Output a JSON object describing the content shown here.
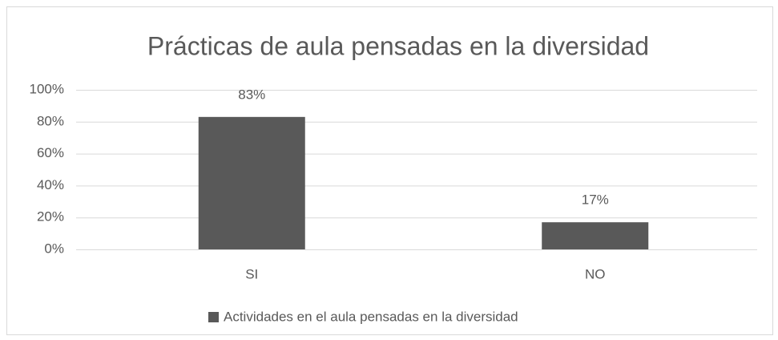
{
  "chart_data": {
    "type": "bar",
    "title": "Prácticas de aula pensadas en la diversidad",
    "categories": [
      "SI",
      "NO"
    ],
    "series": [
      {
        "name": "Actividades en el aula pensadas en la diversidad",
        "color": "#595959",
        "values": [
          83,
          17
        ],
        "value_labels": [
          "83%",
          "17%"
        ]
      }
    ],
    "ylim": [
      0,
      100
    ],
    "yticks": [
      {
        "value": 0,
        "label": "0%"
      },
      {
        "value": 20,
        "label": "20%"
      },
      {
        "value": 40,
        "label": "40%"
      },
      {
        "value": 60,
        "label": "60%"
      },
      {
        "value": 80,
        "label": "80%"
      },
      {
        "value": 100,
        "label": "100%"
      }
    ],
    "grid": true,
    "legend": "bottom"
  }
}
